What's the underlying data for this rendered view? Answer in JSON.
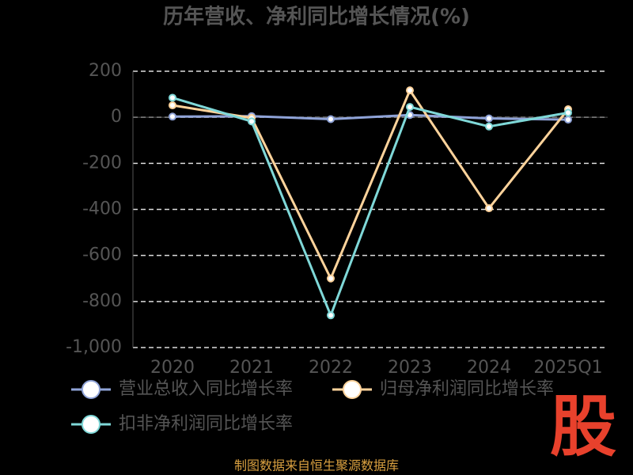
{
  "chart_data": {
    "type": "line",
    "title": "历年营收、净利同比增长情况(%)",
    "categories": [
      "2020",
      "2021",
      "2022",
      "2023",
      "2024",
      "2025Q1"
    ],
    "series": [
      {
        "name": "营业总收入同比增长率",
        "color": "#8fa3d8",
        "values": [
          3,
          5,
          -8,
          10,
          -5,
          -10
        ]
      },
      {
        "name": "归母净利润同比增长率",
        "color": "#ffd39b",
        "values": [
          52,
          -3,
          -700,
          117,
          -395,
          35
        ]
      },
      {
        "name": "扣非净利润同比增长率",
        "color": "#7fd8d8",
        "values": [
          85,
          -18,
          -860,
          45,
          -40,
          20
        ]
      }
    ],
    "ylim": [
      -1000,
      200
    ],
    "yticks": [
      200,
      0,
      -200,
      -400,
      -600,
      -800,
      {
        "value": -1000,
        "label": "-1,000"
      }
    ],
    "grid": true,
    "source": "制图数据来自恒生聚源数据库",
    "logo": "股"
  }
}
